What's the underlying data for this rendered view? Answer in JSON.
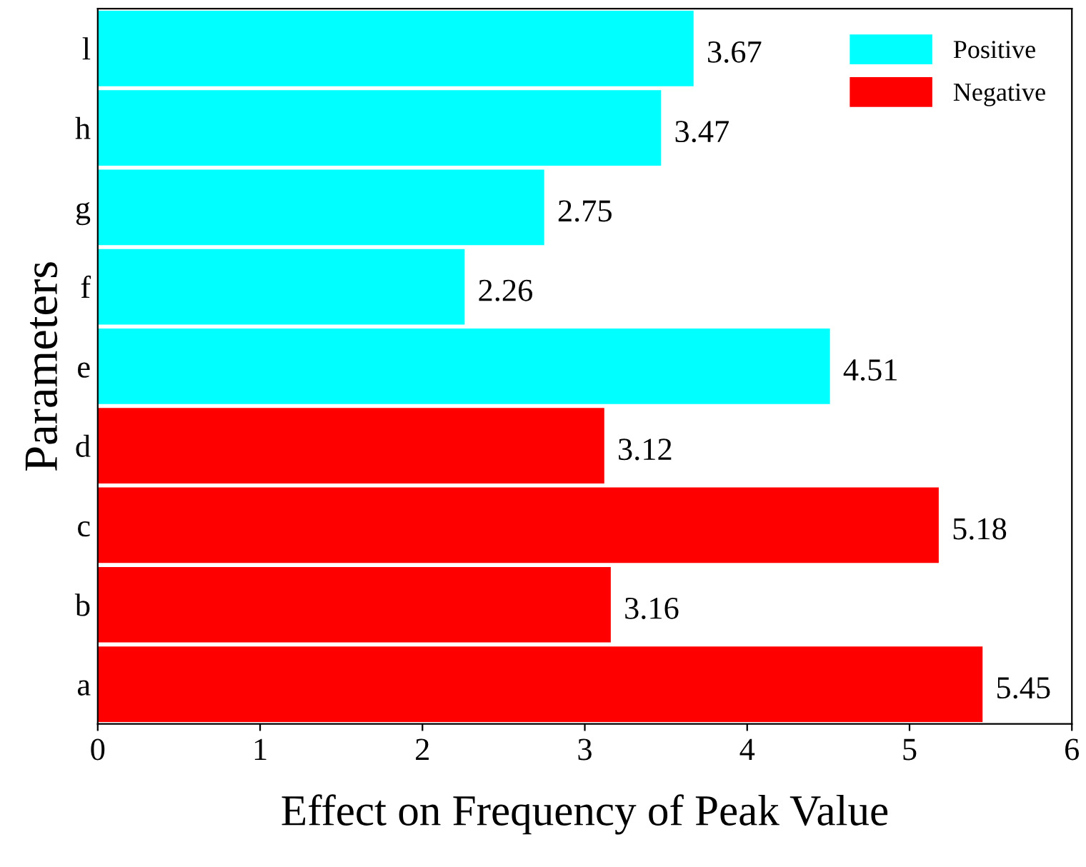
{
  "chart_data": {
    "type": "bar",
    "orientation": "horizontal",
    "xlabel": "Effect on Frequency of Peak Value",
    "ylabel": "Parameters",
    "categories": [
      "l",
      "h",
      "g",
      "f",
      "e",
      "d",
      "c",
      "b",
      "a"
    ],
    "series": [
      {
        "name": "Positive",
        "color": "#00ffff",
        "values": [
          3.67,
          3.47,
          2.75,
          2.26,
          4.51,
          null,
          null,
          null,
          null
        ]
      },
      {
        "name": "Negative",
        "color": "#ff0000",
        "values": [
          null,
          null,
          null,
          null,
          null,
          3.12,
          5.18,
          3.16,
          5.45
        ]
      }
    ],
    "xlim": [
      0,
      6
    ],
    "xticks": [
      0,
      1,
      2,
      3,
      4,
      5,
      6
    ],
    "data_labels": true,
    "legend": "top right",
    "grid": false
  }
}
